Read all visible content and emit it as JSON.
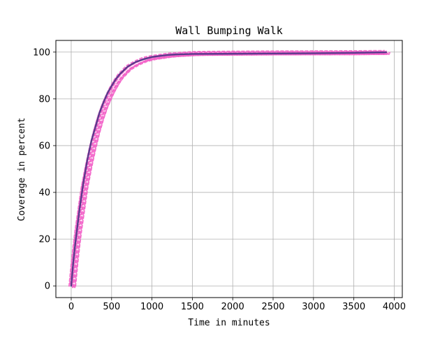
{
  "chart_data": {
    "type": "line",
    "title": "Wall Bumping Walk",
    "xlabel": "Time in minutes",
    "ylabel": "Coverage in percent",
    "xlim": [
      -190,
      4100
    ],
    "ylim": [
      -5,
      105
    ],
    "xticks": [
      0,
      500,
      1000,
      1500,
      2000,
      2500,
      3000,
      3500,
      4000
    ],
    "yticks": [
      0,
      20,
      40,
      60,
      80,
      100
    ],
    "grid": true,
    "series": [
      {
        "style": "noisy-runs",
        "color": "#f25ec7",
        "x": [
          0,
          25,
          50,
          75,
          100,
          150,
          200,
          250,
          300,
          350,
          400,
          450,
          500,
          550,
          600,
          700,
          800,
          900,
          1000,
          1100,
          1200,
          1300,
          1400,
          1500,
          1600,
          2000,
          2500,
          3000,
          3500,
          3900
        ],
        "y": [
          0,
          9,
          17,
          24,
          30,
          42,
          51,
          59,
          66,
          72,
          77,
          81,
          84.5,
          87.5,
          90,
          93.5,
          95.5,
          97,
          97.8,
          98.3,
          98.8,
          99.1,
          99.3,
          99.5,
          99.6,
          99.7,
          99.8,
          99.85,
          99.9,
          100
        ]
      },
      {
        "style": "mean",
        "color": "#5a3a8c",
        "x": [
          0,
          25,
          50,
          75,
          100,
          150,
          200,
          250,
          300,
          350,
          400,
          450,
          500,
          550,
          600,
          700,
          800,
          900,
          1000,
          1100,
          1200,
          1300,
          1400,
          1500,
          2000,
          2500,
          3000,
          3500,
          3900
        ],
        "y": [
          0,
          10,
          18,
          25,
          32,
          44,
          54,
          62,
          68,
          74,
          78.5,
          82.5,
          85.5,
          88.3,
          90.5,
          93.8,
          95.8,
          97,
          97.9,
          98.4,
          98.8,
          99,
          99.1,
          99.2,
          99.3,
          99.4,
          99.5,
          99.7,
          99.9
        ]
      }
    ]
  }
}
